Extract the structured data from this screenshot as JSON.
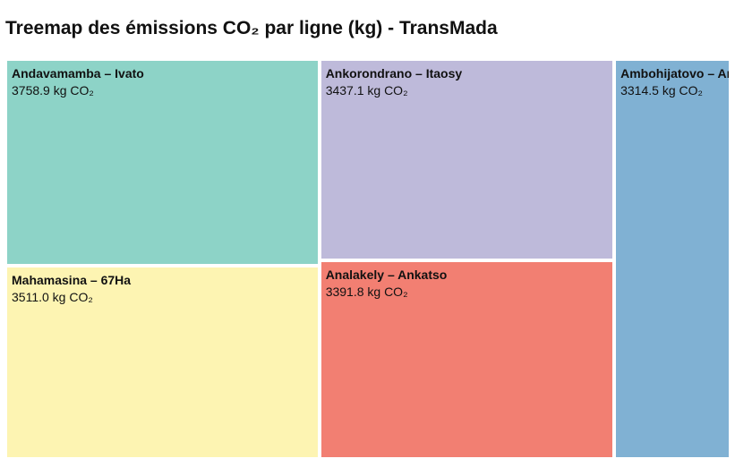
{
  "chart_data": {
    "type": "treemap",
    "title": "Treemap des émissions CO₂ par ligne (kg) - TransMada",
    "unit": "kg CO₂",
    "items": [
      {
        "name": "Andavamamba – Ivato",
        "value": 3758.9,
        "label": "3758.9 kg CO₂",
        "color": "#8dd3c7"
      },
      {
        "name": "Mahamasina – 67Ha",
        "value": 3511.0,
        "label": "3511.0 kg CO₂",
        "color": "#fdf4b2"
      },
      {
        "name": "Ankorondrano – Itaosy",
        "value": 3437.1,
        "label": "3437.1 kg CO₂",
        "color": "#bebada"
      },
      {
        "name": "Analakely – Ankatso",
        "value": 3391.8,
        "label": "3391.8 kg CO₂",
        "color": "#f27f72"
      },
      {
        "name": "Ambohijatovo – Anosibe",
        "value": 3314.5,
        "label": "3314.5 kg CO₂",
        "color": "#80b1d3"
      }
    ]
  }
}
